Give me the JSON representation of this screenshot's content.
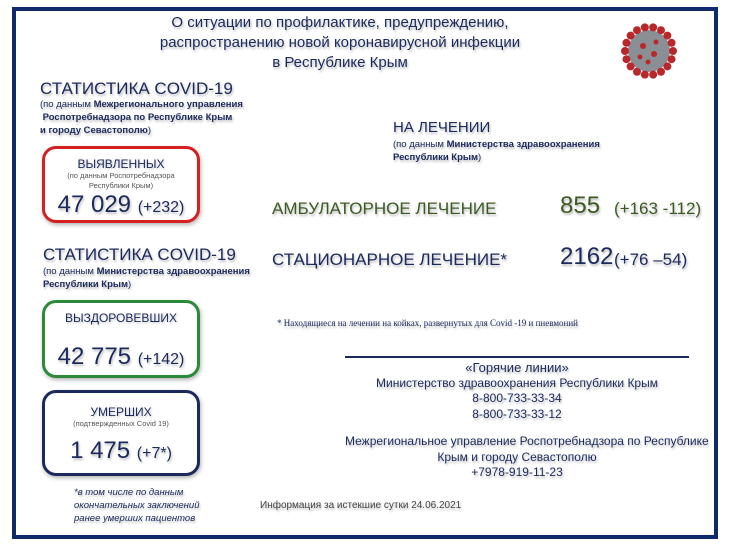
{
  "title": [
    "О ситуации по профилактике, предупреждению,",
    "распространению новой коронавирусной инфекции",
    "в Республике Крым"
  ],
  "stat1": {
    "heading": "СТАТИСТИКА COVID-19",
    "source_prefix": "(по данным ",
    "source_bold_1": "Межрегионального управления",
    "source_bold_2": "Роспотребнадзора по Республике Крым",
    "source_bold_3": "и городу Севастополю",
    ")": ")"
  },
  "detected": {
    "label": "ВЫЯВЛЕННЫХ",
    "note_1": "(по данным Роспотребнадзора",
    "note_2": "Республики Крым)",
    "value": "47 029",
    "delta": "(+232)",
    "color": "#d42020"
  },
  "stat2": {
    "heading": "СТАТИСТИКА COVID-19",
    "source_prefix": "(по данным ",
    "source_bold_1": "Министерства здравоохранения",
    "source_bold_2": "Республики Крым"
  },
  "recovered": {
    "label": "ВЫЗДОРОВЕВШИХ",
    "value": "42 775",
    "delta": "(+142)",
    "color": "#2a8a3a"
  },
  "deceased": {
    "label": "УМЕРШИХ",
    "note": "(подтвержденных Covid 19)",
    "value": "1 475",
    "delta": "(+7*)",
    "color": "#1b2a5c"
  },
  "deceased_footnote": [
    "*в том числе по данным",
    "окончательных заключений",
    "ранее умерших пациентов"
  ],
  "treatment": {
    "heading": "НА ЛЕЧЕНИИ",
    "source_prefix": "(по данным ",
    "source_bold_1": "Министерства здравоохранения",
    "source_bold_2": "Республики Крым",
    "outpatient": {
      "label": "АМБУЛАТОРНОЕ ЛЕЧЕНИЕ",
      "value": "855",
      "delta": "(+163 -112)"
    },
    "inpatient": {
      "label": "СТАЦИОНАРНОЕ ЛЕЧЕНИЕ*",
      "value": "2162",
      "delta": "(+76 –54)"
    },
    "footnote": "* Находящиеся на лечении на койках, развернутых для Covid -19  и пневмоний"
  },
  "hotlines": {
    "title": "«Горячие линии»",
    "org1": "Министерство здравоохранения Республики Крым",
    "phone1": "8-800-733-33-34",
    "phone2": "8-800-733-33-12",
    "org2_line1": "Межрегиональное управление Роспотребнадзора по Республике",
    "org2_line2": "Крым и городу Севастополю",
    "phone3": "+7978-919-11-23"
  },
  "info": "Информация за истекшие сутки 24.06.2021",
  "colors": {
    "frame": "#0f2a6a",
    "outpatient": "#3c5a22"
  }
}
